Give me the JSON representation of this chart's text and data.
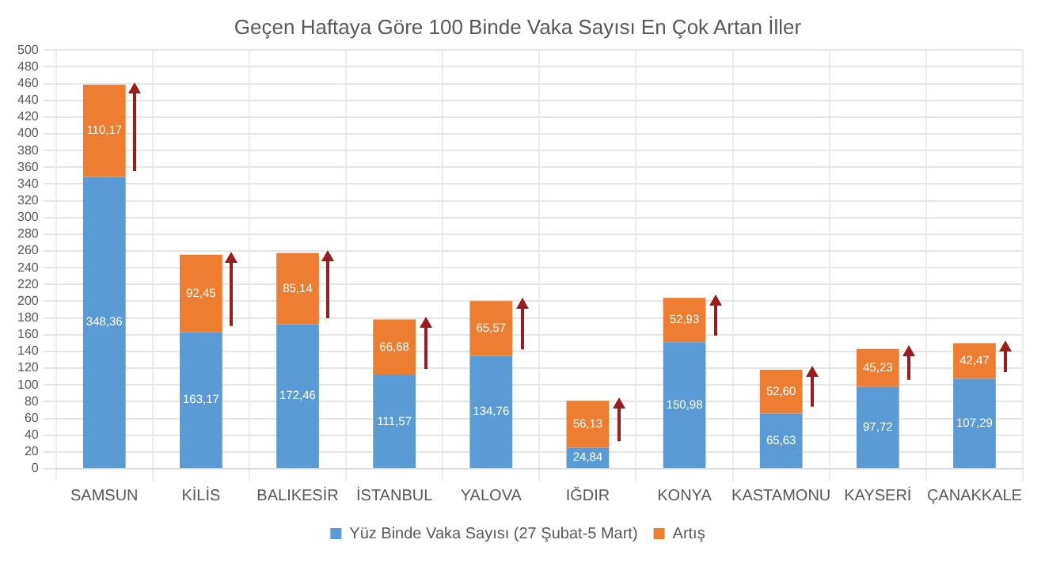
{
  "chart_data": {
    "type": "bar",
    "stacked": true,
    "title": "Geçen Haftaya Göre 100 Binde Vaka Sayısı En Çok Artan İller",
    "categories": [
      "SAMSUN",
      "KİLİS",
      "BALIKESİR",
      "İSTANBUL",
      "YALOVA",
      "IĞDIR",
      "KONYA",
      "KASTAMONU",
      "KAYSERİ",
      "ÇANAKKALE"
    ],
    "series": [
      {
        "name": "Yüz Binde Vaka Sayısı (27 Şubat-5 Mart)",
        "color": "#5b9bd5",
        "values": [
          348.36,
          163.17,
          172.46,
          111.57,
          134.76,
          24.84,
          150.98,
          65.63,
          97.72,
          107.29
        ],
        "value_labels": [
          "348,36",
          "163,17",
          "172,46",
          "111,57",
          "134,76",
          "24,84",
          "150,98",
          "65,63",
          "97,72",
          "107,29"
        ]
      },
      {
        "name": "Artış",
        "color": "#ed7d31",
        "values": [
          110.17,
          92.45,
          85.14,
          66.68,
          65.57,
          56.13,
          52.93,
          52.6,
          45.23,
          42.47
        ],
        "value_labels": [
          "110,17",
          "92,45",
          "85,14",
          "66,68",
          "65,57",
          "56,13",
          "52,93",
          "52,60",
          "45,23",
          "42,47"
        ]
      }
    ],
    "ylim": [
      0,
      500
    ],
    "yticks": [
      0,
      20,
      40,
      60,
      80,
      100,
      120,
      140,
      160,
      180,
      200,
      220,
      240,
      260,
      280,
      300,
      320,
      340,
      360,
      380,
      400,
      420,
      440,
      460,
      480,
      500
    ],
    "grid": true,
    "legend": "bottom"
  }
}
